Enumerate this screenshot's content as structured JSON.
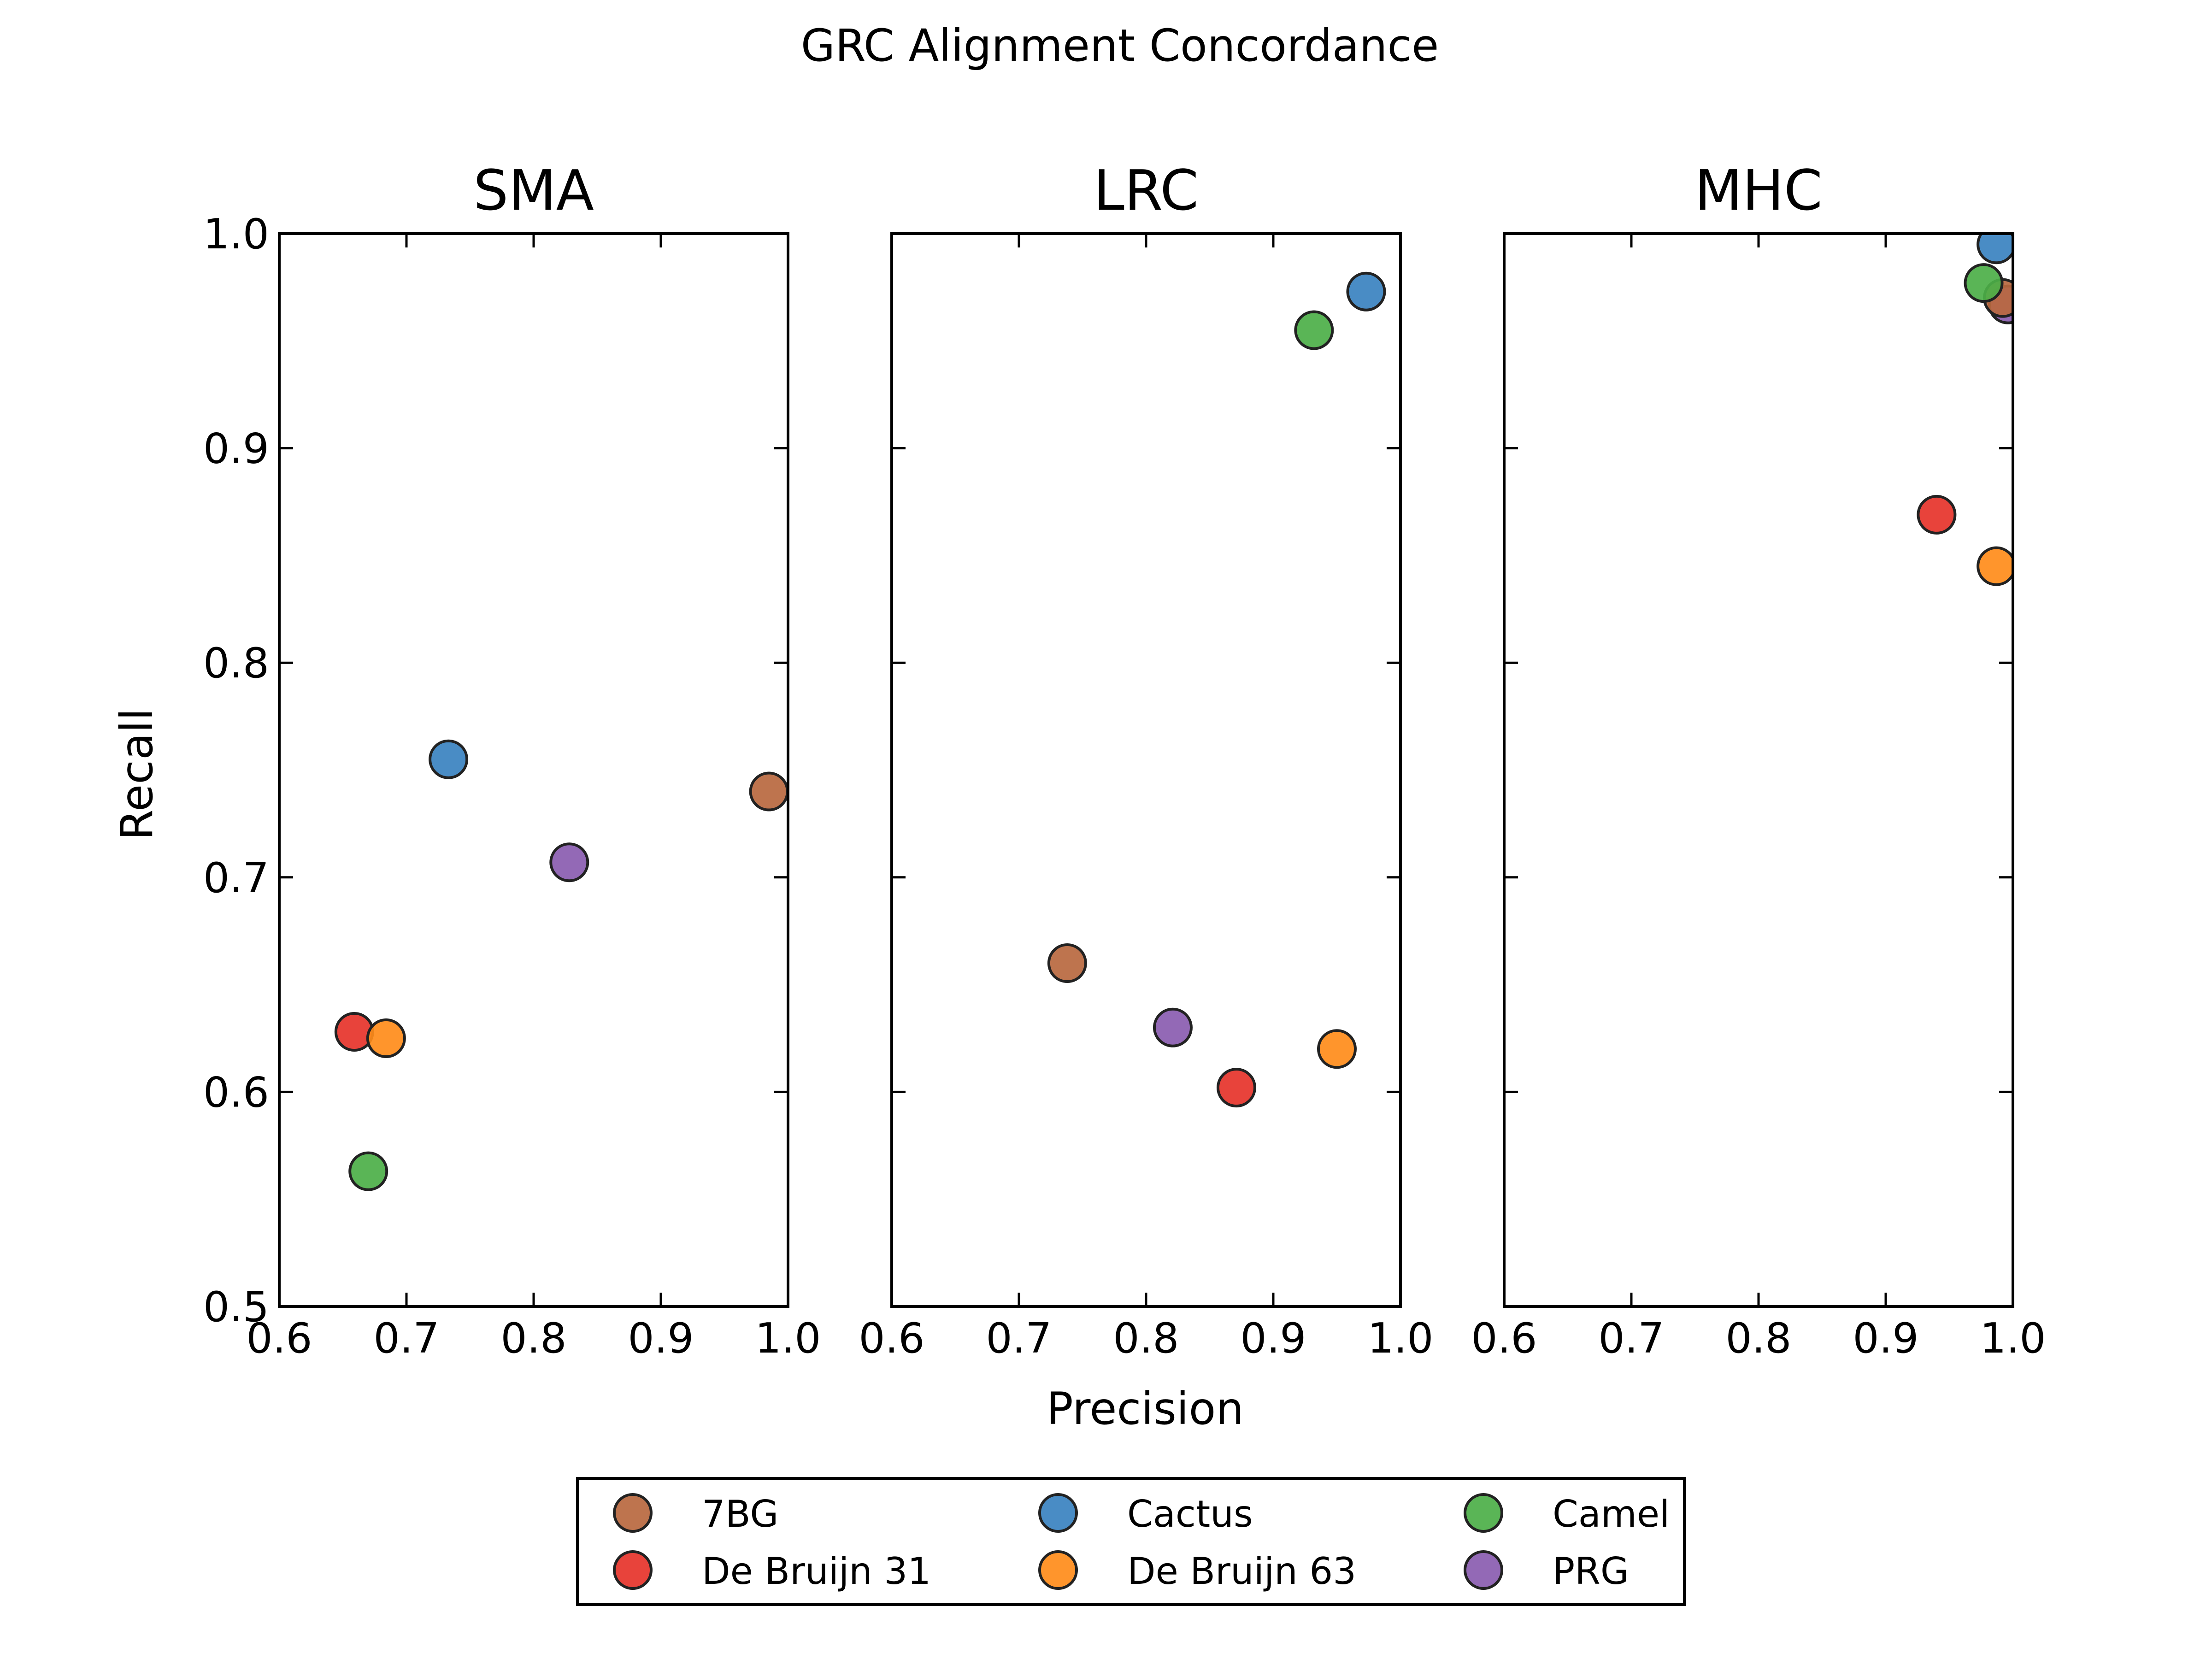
{
  "figure_title": "GRC Alignment Concordance",
  "chart_data": {
    "type": "scatter",
    "title": "GRC Alignment Concordance",
    "xlabel": "Precision",
    "ylabel": "Recall",
    "xlim": [
      0.6,
      1.0
    ],
    "ylim": [
      0.5,
      1.0
    ],
    "x_ticks": [
      "0.6",
      "0.7",
      "0.8",
      "0.9",
      "1.0"
    ],
    "y_ticks": [
      "0.5",
      "0.6",
      "0.7",
      "0.8",
      "0.9",
      "1.0"
    ],
    "grid": false,
    "legend_position": "bottom-center",
    "series": [
      {
        "name": "7BG",
        "color": "#b8683f"
      },
      {
        "name": "Cactus",
        "color": "#3a82c0"
      },
      {
        "name": "Camel",
        "color": "#4caf48"
      },
      {
        "name": "De Bruijn 31",
        "color": "#e6332a"
      },
      {
        "name": "De Bruijn 63",
        "color": "#ff8c1a"
      },
      {
        "name": "PRG",
        "color": "#8a5cb0"
      }
    ],
    "panels": [
      {
        "title": "SMA",
        "points": [
          {
            "series": "7BG",
            "x": 0.985,
            "y": 0.74
          },
          {
            "series": "Cactus",
            "x": 0.733,
            "y": 0.755
          },
          {
            "series": "Camel",
            "x": 0.67,
            "y": 0.563
          },
          {
            "series": "De Bruijn 31",
            "x": 0.659,
            "y": 0.628
          },
          {
            "series": "De Bruijn 63",
            "x": 0.684,
            "y": 0.625
          },
          {
            "series": "PRG",
            "x": 0.828,
            "y": 0.707
          }
        ]
      },
      {
        "title": "LRC",
        "points": [
          {
            "series": "7BG",
            "x": 0.738,
            "y": 0.66
          },
          {
            "series": "Cactus",
            "x": 0.973,
            "y": 0.973
          },
          {
            "series": "Camel",
            "x": 0.932,
            "y": 0.955
          },
          {
            "series": "De Bruijn 31",
            "x": 0.871,
            "y": 0.602
          },
          {
            "series": "De Bruijn 63",
            "x": 0.95,
            "y": 0.62
          },
          {
            "series": "PRG",
            "x": 0.821,
            "y": 0.63
          }
        ]
      },
      {
        "title": "MHC",
        "points": [
          {
            "series": "PRG",
            "x": 0.996,
            "y": 0.967
          },
          {
            "series": "7BG",
            "x": 0.992,
            "y": 0.97
          },
          {
            "series": "Cactus",
            "x": 0.987,
            "y": 0.995
          },
          {
            "series": "Camel",
            "x": 0.977,
            "y": 0.977
          },
          {
            "series": "De Bruijn 31",
            "x": 0.94,
            "y": 0.869
          },
          {
            "series": "De Bruijn 63",
            "x": 0.987,
            "y": 0.845
          }
        ]
      }
    ]
  }
}
